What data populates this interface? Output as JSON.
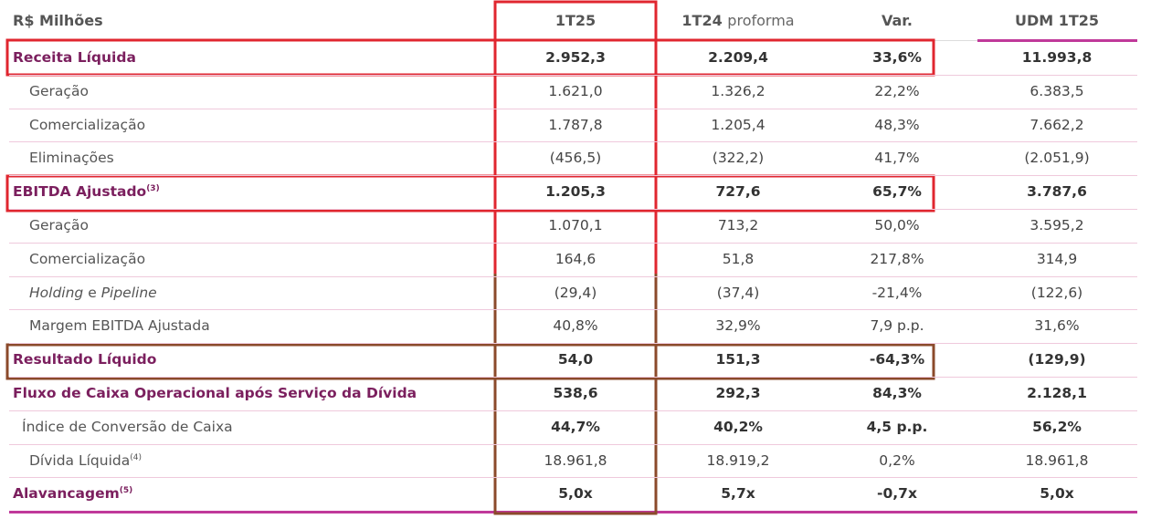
{
  "header": {
    "label": "R$ Milhões",
    "columns": [
      {
        "text": "1T25"
      },
      {
        "text": "1T24",
        "note": "proforma"
      },
      {
        "text": "Var."
      },
      {
        "text": "UDM 1T25"
      }
    ]
  },
  "rows": [
    {
      "label": "Receita Líquida",
      "style": "main",
      "values": [
        "2.952,3",
        "2.209,4",
        "33,6%",
        "11.993,8"
      ]
    },
    {
      "label": "Geração",
      "style": "sub",
      "values": [
        "1.621,0",
        "1.326,2",
        "22,2%",
        "6.383,5"
      ]
    },
    {
      "label": "Comercialização",
      "style": "sub",
      "values": [
        "1.787,8",
        "1.205,4",
        "48,3%",
        "7.662,2"
      ]
    },
    {
      "label": "Eliminações",
      "style": "sub",
      "values": [
        "(456,5)",
        "(322,2)",
        "41,7%",
        "(2.051,9)"
      ]
    },
    {
      "label": "EBITDA Ajustado",
      "sup": "(3)",
      "style": "main",
      "values": [
        "1.205,3",
        "727,6",
        "65,7%",
        "3.787,6"
      ]
    },
    {
      "label": "Geração",
      "style": "sub",
      "values": [
        "1.070,1",
        "713,2",
        "50,0%",
        "3.595,2"
      ]
    },
    {
      "label": "Comercialização",
      "style": "sub",
      "values": [
        "164,6",
        "51,8",
        "217,8%",
        "314,9"
      ]
    },
    {
      "label_parts": [
        {
          "text": "Holding",
          "italic": true
        },
        {
          "text": "e"
        },
        {
          "text": "Pipeline",
          "italic": true
        }
      ],
      "style": "sub",
      "values": [
        "(29,4)",
        "(37,4)",
        "-21,4%",
        "(122,6)"
      ]
    },
    {
      "label": "Margem EBITDA Ajustada",
      "style": "sub",
      "values": [
        "40,8%",
        "32,9%",
        "7,9 p.p.",
        "31,6%"
      ]
    },
    {
      "label": "Resultado Líquido",
      "style": "main",
      "values": [
        "54,0",
        "151,3",
        "-64,3%",
        "(129,9)"
      ]
    },
    {
      "label": "Fluxo de Caixa Operacional após Serviço da Dívida",
      "style": "main",
      "values": [
        "538,6",
        "292,3",
        "84,3%",
        "2.128,1"
      ]
    },
    {
      "label": "Índice de Conversão de Caixa",
      "style": "mid",
      "values": [
        "44,7%",
        "40,2%",
        "4,5 p.p.",
        "56,2%"
      ]
    },
    {
      "label": "Dívida Líquida",
      "sup": "(4)",
      "style": "sub",
      "values": [
        "18.961,8",
        "18.919,2",
        "0,2%",
        "18.961,8"
      ]
    },
    {
      "label": "Alavancagem",
      "sup": "(5)",
      "style": "main",
      "values": [
        "5,0x",
        "5,7x",
        "-0,7x",
        "5,0x"
      ]
    }
  ]
}
